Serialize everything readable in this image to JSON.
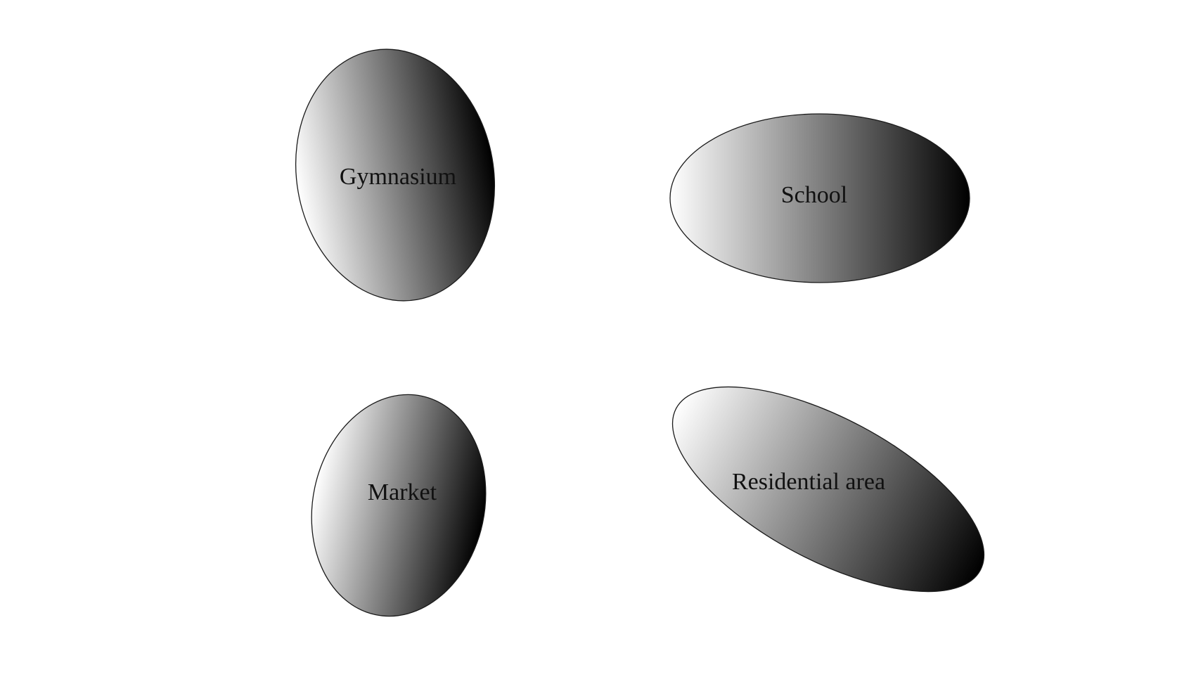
{
  "diagram": {
    "fill_gradient": {
      "start_color": "#ffffff",
      "end_color": "#000000",
      "direction": "left-to-right"
    },
    "outline_color": "#1a1a1a",
    "text_color": "#111111",
    "regions": [
      {
        "id": "gymnasium",
        "label": "Gymnasium"
      },
      {
        "id": "school",
        "label": "School"
      },
      {
        "id": "market",
        "label": "Market"
      },
      {
        "id": "residential",
        "label": "Residential area"
      }
    ]
  }
}
